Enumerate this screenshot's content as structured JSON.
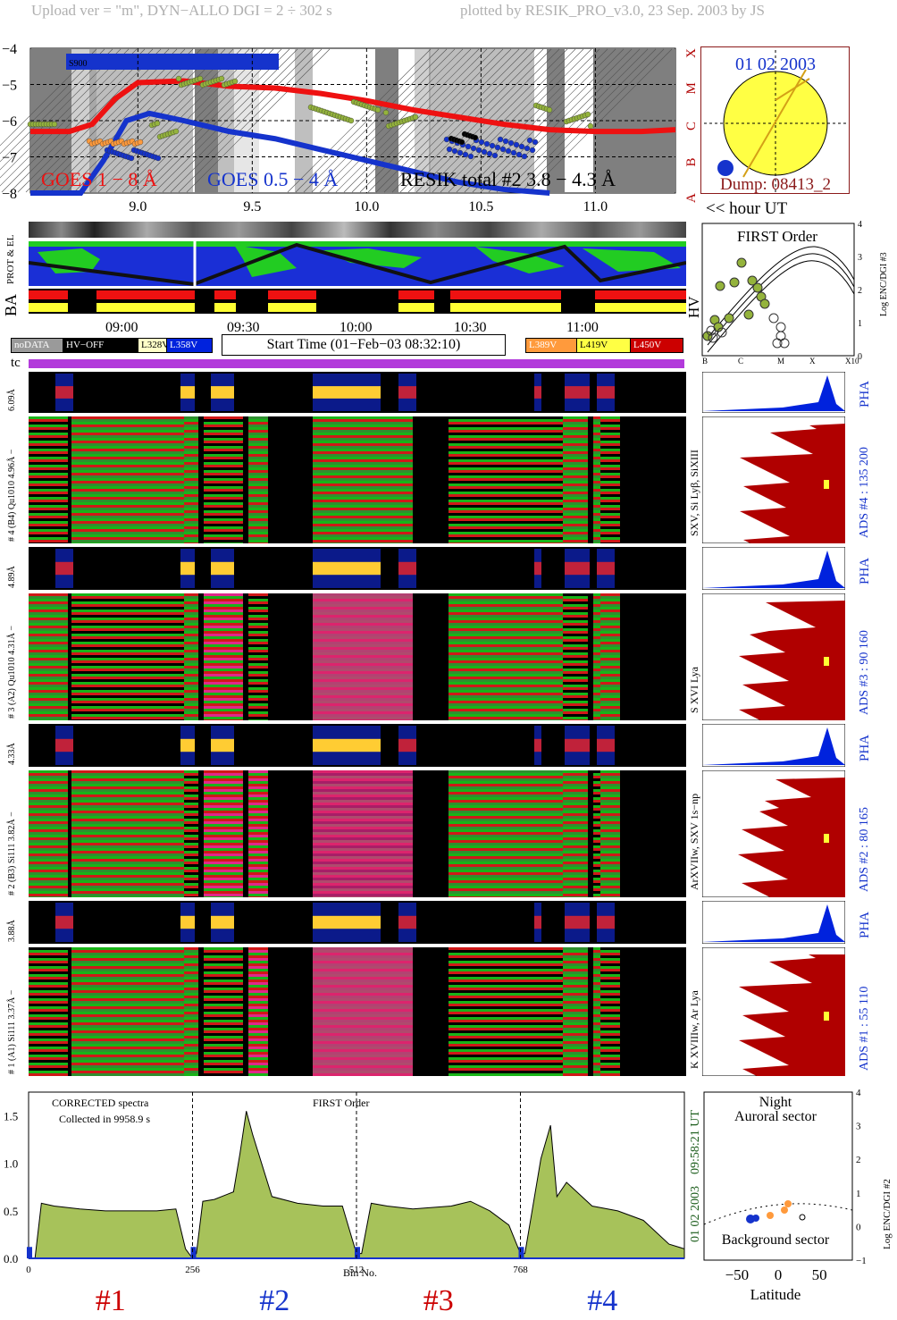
{
  "header": {
    "left": "Upload ver = \"m\", DYN−ALLO DGI =   2 ÷ 302 s",
    "right": "plotted by RESIK_PRO_v3.0, 23 Sep. 2003 by JS"
  },
  "colors": {
    "goes_long": "#ee1111",
    "goes_short": "#1533cc",
    "resik": "#94b33c",
    "spectrum_fill": "#a7c25a",
    "dark_red": "#b00000",
    "pha_blue": "#0022dd",
    "magenta_bar": "#b23adb",
    "sun": "#ffff44"
  },
  "chart_data": [
    {
      "type": "line",
      "id": "goes_lightcurve",
      "y_tick_labels": [
        "−4",
        "−5",
        "−6",
        "−7",
        "−8"
      ],
      "ylim": [
        -8,
        -4
      ],
      "x_tick_labels": [
        "9.0",
        "9.5",
        "10.0",
        "10.5",
        "11.0"
      ],
      "xlim": [
        8.53,
        11.35
      ],
      "xlabel": "<< hour UT",
      "class_labels": [
        "X",
        "M",
        "C",
        "B",
        "A"
      ],
      "inset_label": "S900",
      "legend": [
        {
          "label": "GOES 1 − 8 Å",
          "color": "#ee1111"
        },
        {
          "label": "GOES 0.5 − 4 Å",
          "color": "#1533cc"
        },
        {
          "label": "RESIK total #2  3.8 − 4.3 Å",
          "color": "#000000"
        }
      ],
      "series": [
        {
          "name": "GOES 1 − 8 Å",
          "x": [
            8.53,
            8.7,
            8.8,
            8.9,
            9.0,
            9.2,
            9.4,
            9.6,
            9.8,
            10.0,
            10.2,
            10.4,
            10.6,
            10.8,
            11.0,
            11.2,
            11.35
          ],
          "y": [
            -6.3,
            -6.3,
            -6.1,
            -5.4,
            -4.95,
            -4.9,
            -5.05,
            -5.1,
            -5.25,
            -5.45,
            -5.7,
            -5.9,
            -6.1,
            -6.25,
            -6.3,
            -6.3,
            -6.25
          ]
        },
        {
          "name": "GOES 0.5 − 4 Å",
          "x": [
            8.53,
            8.75,
            8.85,
            8.95,
            9.05,
            9.2,
            9.4,
            9.6,
            9.8,
            10.0,
            10.2,
            10.4,
            10.6,
            10.8
          ],
          "y": [
            -8.0,
            -8.0,
            -7.1,
            -6.0,
            -5.8,
            -6.0,
            -6.3,
            -6.5,
            -6.8,
            -7.1,
            -7.4,
            -7.7,
            -7.9,
            -8.0
          ]
        }
      ]
    },
    {
      "type": "scatter",
      "id": "first_order",
      "title": "FIRST Order",
      "ylabel": "Log ENC/DGI #3",
      "y_tick_labels": [
        "0",
        "1",
        "2",
        "3",
        "4"
      ],
      "x_tick_labels": [
        "B",
        "C",
        "M",
        "X",
        "X10"
      ],
      "ylim": [
        0,
        4
      ]
    },
    {
      "type": "area",
      "id": "corrected_spectra",
      "text": [
        "CORRECTED spectra",
        "Collected in  9958.9 s",
        "FIRST Order"
      ],
      "xlabel": "Bin No.",
      "x_tick_labels": [
        "0",
        "256",
        "512",
        "768"
      ],
      "y_tick_labels": [
        "0.0",
        "0.5",
        "1.0",
        "1.5"
      ],
      "xlim": [
        0,
        1024
      ],
      "ylim": [
        0,
        1.75
      ],
      "channel_labels": [
        "#1",
        "#2",
        "#3",
        "#4"
      ],
      "x": [
        0,
        10,
        20,
        40,
        80,
        120,
        160,
        200,
        230,
        245,
        256,
        262,
        272,
        290,
        320,
        330,
        340,
        350,
        380,
        420,
        460,
        490,
        512,
        520,
        535,
        560,
        600,
        660,
        690,
        720,
        750,
        768,
        775,
        785,
        800,
        815,
        825,
        840,
        880,
        920,
        960,
        1000,
        1024
      ],
      "y": [
        0,
        0,
        0.58,
        0.55,
        0.52,
        0.5,
        0.5,
        0.5,
        0.52,
        0.1,
        0,
        0.05,
        0.6,
        0.62,
        0.7,
        1.1,
        1.55,
        1.3,
        0.65,
        0.58,
        0.55,
        0.55,
        0.05,
        0.05,
        0.58,
        0.55,
        0.52,
        0.55,
        0.6,
        0.5,
        0.35,
        0.05,
        0.05,
        0.45,
        1.05,
        1.4,
        0.65,
        0.8,
        0.55,
        0.5,
        0.4,
        0.15,
        0.1
      ]
    },
    {
      "type": "scatter",
      "id": "latitude",
      "text": [
        "Night",
        "Auroral sector",
        "Background sector"
      ],
      "xlabel": "Latitude",
      "ylabel": "Log ENC/DGI #2",
      "x_tick_labels": [
        "−50",
        "0",
        "50"
      ],
      "y_tick_labels": [
        "−1",
        "0",
        "1",
        "2",
        "3",
        "4"
      ],
      "xlim": [
        -90,
        90
      ],
      "ylim": [
        -1,
        4
      ]
    }
  ],
  "sun": {
    "date": "01 02 2003",
    "dump": "Dump: 08413_2"
  },
  "orbit": {
    "side_label": "PROT & EL",
    "ba_label": "BA",
    "hv_label": "HV"
  },
  "time_axis": {
    "labels": [
      "09:00",
      "09:30",
      "10:00",
      "10:30",
      "11:00"
    ]
  },
  "legend_boxes": [
    {
      "label": "noDATA",
      "bg": "#9a9a9a",
      "fg": "#ffffff"
    },
    {
      "label": "HV−OFF",
      "bg": "#000000",
      "fg": "#ffffff"
    },
    {
      "label": "L328V",
      "bg": "#ffffc8",
      "fg": "#000000"
    },
    {
      "label": "L358V",
      "bg": "#0022dd",
      "fg": "#ffffff"
    },
    {
      "label": "L389V",
      "bg": "#ff9a3c",
      "fg": "#ffffff"
    },
    {
      "label": "L419V",
      "bg": "#ffff44",
      "fg": "#000000"
    },
    {
      "label": "L450V",
      "bg": "#cc0000",
      "fg": "#ffffff"
    }
  ],
  "start_time": "Start Time (01−Feb−03 08:32:10)",
  "tc_label": "tc",
  "channels": [
    {
      "pha_label": "6.09Å",
      "main_label": "# 4 (B4) Qu1010 4.96Å −",
      "right_label": "SXV, Si Lyβ, SiXIII",
      "ads": "ADS #4 :   135 200"
    },
    {
      "pha_label": "4.89Å",
      "main_label": "# 3 (A2) Qu1010  4.31Å −",
      "right_label": "S XVI Lya",
      "ads": "ADS #3 :   90 160"
    },
    {
      "pha_label": "4.33Å",
      "main_label": "# 2 (B3) Si111  3.82Å −",
      "right_label": "ArXVIIw, SXV 1s−np",
      "ads": "ADS #2 :   80 165"
    },
    {
      "pha_label": "3.88Å",
      "main_label": "# 1 (A1) Si111  3.37Å −",
      "right_label": "K XVIIIw, Ar Lya",
      "ads": "ADS #1 :   55 110"
    }
  ],
  "pha_label": "PHA",
  "vertical_right": {
    "time": "09:58:21 UT",
    "date": "01 02 2003"
  }
}
